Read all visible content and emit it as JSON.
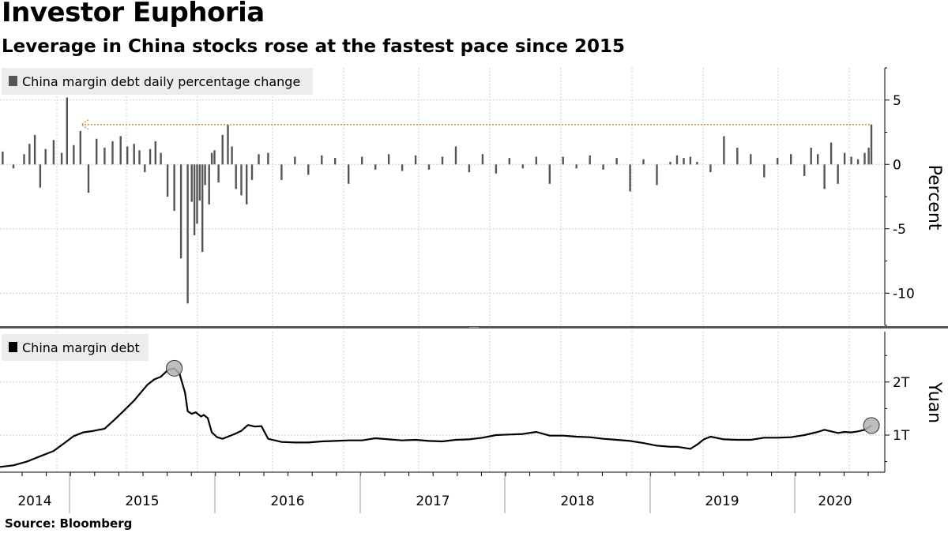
{
  "title": "Investor Euphoria",
  "subtitle": "Leverage in China stocks rose at the fastest pace since 2015",
  "source": "Source: Bloomberg",
  "colors": {
    "bars": "#555555",
    "line": "#000000",
    "annotation": "#f08a3c",
    "marker_fill": "#b3b3b3",
    "legend_bg": "#ececec",
    "grid": "#cfcfcf",
    "divider": "#555555"
  },
  "chart_data": [
    {
      "type": "bar",
      "legend": "China margin debt daily percentage change",
      "ylabel": "Percent",
      "ylim": [
        -12.5,
        7.5
      ],
      "yticks": [
        5,
        0,
        -5,
        -10
      ],
      "ytick_labels": [
        "5",
        "0",
        "-5",
        "-10"
      ],
      "x_range": [
        2014.0,
        2020.6
      ],
      "grid": true,
      "annotation": "dotted arrow from latest reading (~3.1%) back to comparable level in 2015",
      "x": [
        2014.02,
        2014.1,
        2014.18,
        2014.22,
        2014.26,
        2014.3,
        2014.34,
        2014.4,
        2014.46,
        2014.5,
        2014.55,
        2014.6,
        2014.66,
        2014.72,
        2014.78,
        2014.84,
        2014.9,
        2014.95,
        2015.0,
        2015.04,
        2015.08,
        2015.12,
        2015.16,
        2015.2,
        2015.25,
        2015.3,
        2015.35,
        2015.4,
        2015.43,
        2015.45,
        2015.47,
        2015.49,
        2015.51,
        2015.53,
        2015.56,
        2015.58,
        2015.6,
        2015.63,
        2015.66,
        2015.7,
        2015.73,
        2015.76,
        2015.8,
        2015.84,
        2015.88,
        2015.93,
        2016.0,
        2016.1,
        2016.2,
        2016.3,
        2016.4,
        2016.5,
        2016.6,
        2016.7,
        2016.8,
        2016.9,
        2017.0,
        2017.1,
        2017.2,
        2017.3,
        2017.4,
        2017.5,
        2017.6,
        2017.7,
        2017.8,
        2017.9,
        2018.0,
        2018.1,
        2018.2,
        2018.3,
        2018.4,
        2018.5,
        2018.6,
        2018.7,
        2018.8,
        2018.9,
        2019.0,
        2019.05,
        2019.1,
        2019.15,
        2019.2,
        2019.3,
        2019.4,
        2019.5,
        2019.6,
        2019.7,
        2019.8,
        2019.9,
        2020.0,
        2020.05,
        2020.1,
        2020.15,
        2020.2,
        2020.25,
        2020.3,
        2020.35,
        2020.4,
        2020.45,
        2020.48,
        2020.5
      ],
      "values": [
        1.0,
        -0.3,
        0.8,
        1.6,
        2.3,
        -1.8,
        1.2,
        1.9,
        0.9,
        5.2,
        1.5,
        2.6,
        -2.2,
        2.0,
        1.3,
        1.8,
        2.2,
        1.4,
        1.6,
        1.1,
        -0.6,
        1.2,
        1.8,
        0.9,
        -2.5,
        -3.6,
        -7.3,
        -10.8,
        -2.9,
        -5.5,
        -4.6,
        -2.8,
        -6.8,
        -1.6,
        -3.1,
        0.9,
        1.1,
        -1.4,
        2.3,
        3.1,
        1.4,
        -1.9,
        -2.4,
        -3.1,
        -1.2,
        0.8,
        0.9,
        -1.2,
        0.6,
        -0.8,
        0.7,
        0.5,
        -1.5,
        0.6,
        -0.4,
        0.8,
        -0.5,
        0.7,
        -0.4,
        0.6,
        1.4,
        -0.6,
        0.8,
        -0.7,
        0.5,
        -0.3,
        0.6,
        -1.5,
        0.6,
        -0.3,
        0.7,
        -0.4,
        0.5,
        -2.1,
        0.4,
        -1.6,
        0.2,
        0.7,
        0.5,
        0.6,
        0.2,
        -0.6,
        2.2,
        1.3,
        0.8,
        -1.0,
        0.5,
        0.8,
        -0.9,
        1.3,
        0.8,
        -1.9,
        1.7,
        -1.5,
        0.9,
        0.6,
        0.4,
        0.9,
        1.3,
        3.1
      ]
    },
    {
      "type": "line",
      "legend": "China margin debt",
      "ylabel": "Yuan",
      "ylim": [
        0.3,
        2.95
      ],
      "yticks": [
        2,
        1
      ],
      "ytick_labels": [
        "2T",
        "1T"
      ],
      "grid": true,
      "xlabel": "",
      "x_categories": [
        "2014",
        "2015",
        "2016",
        "2017",
        "2018",
        "2019",
        "2020"
      ],
      "x": [
        2014.0,
        2014.1,
        2014.2,
        2014.3,
        2014.4,
        2014.48,
        2014.55,
        2014.62,
        2014.7,
        2014.78,
        2014.85,
        2014.92,
        2015.0,
        2015.05,
        2015.1,
        2015.15,
        2015.2,
        2015.25,
        2015.3,
        2015.34,
        2015.38,
        2015.4,
        2015.43,
        2015.46,
        2015.5,
        2015.52,
        2015.55,
        2015.58,
        2015.62,
        2015.66,
        2015.7,
        2015.75,
        2015.8,
        2015.85,
        2015.9,
        2015.95,
        2016.0,
        2016.1,
        2016.2,
        2016.3,
        2016.4,
        2016.5,
        2016.6,
        2016.7,
        2016.8,
        2016.9,
        2017.0,
        2017.1,
        2017.2,
        2017.3,
        2017.4,
        2017.5,
        2017.6,
        2017.7,
        2017.8,
        2017.9,
        2018.0,
        2018.1,
        2018.2,
        2018.3,
        2018.4,
        2018.5,
        2018.6,
        2018.7,
        2018.8,
        2018.9,
        2019.0,
        2019.05,
        2019.1,
        2019.15,
        2019.2,
        2019.25,
        2019.3,
        2019.4,
        2019.5,
        2019.6,
        2019.7,
        2019.8,
        2019.9,
        2020.0,
        2020.05,
        2020.1,
        2020.15,
        2020.2,
        2020.25,
        2020.3,
        2020.35,
        2020.4,
        2020.45,
        2020.5
      ],
      "values": [
        0.4,
        0.43,
        0.5,
        0.6,
        0.7,
        0.85,
        0.98,
        1.05,
        1.08,
        1.12,
        1.28,
        1.45,
        1.65,
        1.8,
        1.95,
        2.05,
        2.1,
        2.22,
        2.26,
        2.15,
        1.8,
        1.45,
        1.4,
        1.43,
        1.35,
        1.38,
        1.32,
        1.05,
        0.96,
        0.93,
        0.97,
        1.02,
        1.08,
        1.19,
        1.16,
        1.17,
        0.93,
        0.87,
        0.86,
        0.86,
        0.88,
        0.89,
        0.9,
        0.9,
        0.94,
        0.92,
        0.9,
        0.91,
        0.89,
        0.88,
        0.91,
        0.92,
        0.95,
        1.0,
        1.01,
        1.02,
        1.06,
        0.99,
        0.99,
        0.97,
        0.96,
        0.93,
        0.91,
        0.89,
        0.85,
        0.8,
        0.78,
        0.78,
        0.76,
        0.74,
        0.82,
        0.92,
        0.97,
        0.92,
        0.91,
        0.91,
        0.95,
        0.95,
        0.96,
        1.0,
        1.03,
        1.06,
        1.1,
        1.07,
        1.04,
        1.06,
        1.05,
        1.07,
        1.1,
        1.18
      ],
      "markers": [
        {
          "x": 2015.3,
          "y": 2.26
        },
        {
          "x": 2020.5,
          "y": 1.18
        }
      ]
    }
  ]
}
